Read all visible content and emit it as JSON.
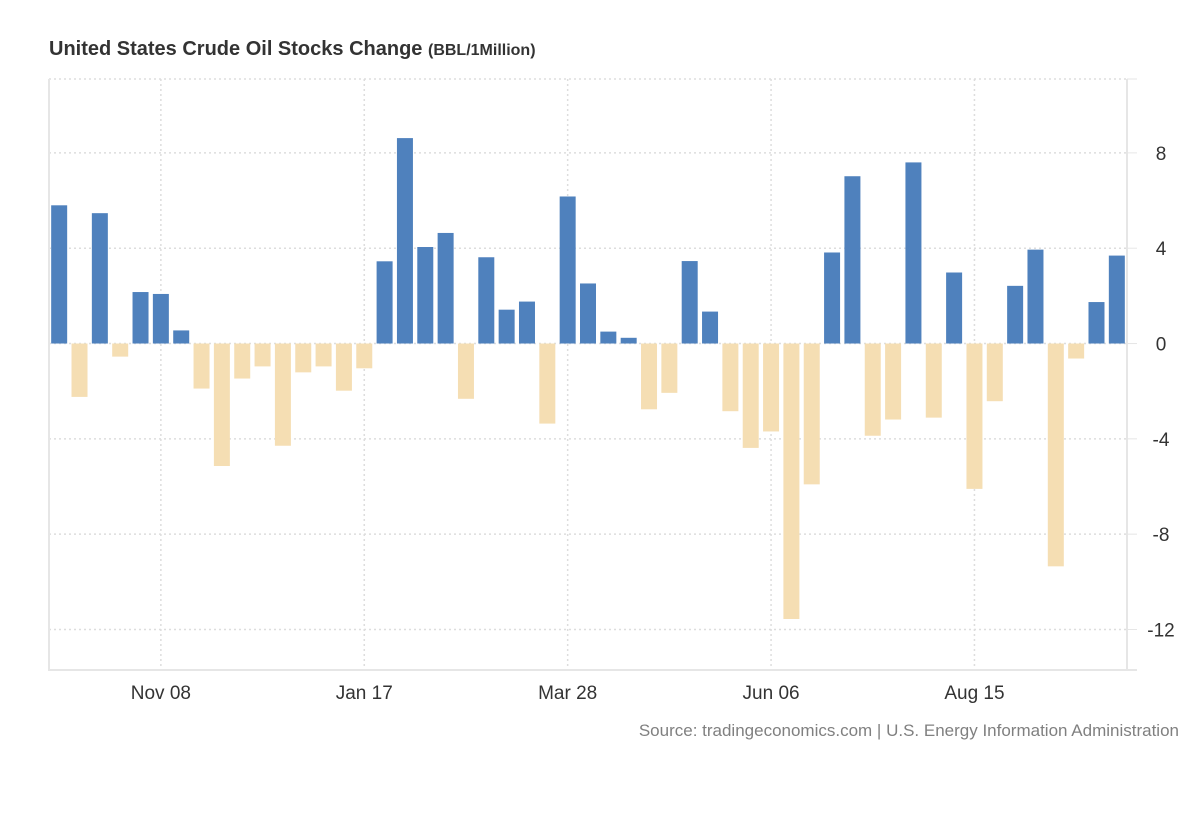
{
  "title": {
    "main": "United States Crude Oil Stocks Change",
    "unit": "(BBL/1Million)"
  },
  "source": "Source: tradingeconomics.com | U.S. Energy Information Administration",
  "colors": {
    "positive": "#4F81BD",
    "negative": "#F5DEB3",
    "grid": "#DDDDDD",
    "axis": "#E6E6E6",
    "text": "#333333"
  },
  "chart_data": {
    "type": "bar",
    "title": "United States Crude Oil Stocks Change (BBL/1Million)",
    "xlabel": "",
    "ylabel": "",
    "ylim": [
      -13.7,
      11.1
    ],
    "yticks": [
      8,
      4,
      0,
      -4,
      -8,
      -12
    ],
    "ytick_labels": [
      "8",
      "4",
      "0",
      "-4",
      "-8",
      "-12"
    ],
    "y_axis_side": "right",
    "grid": true,
    "legend": "none",
    "x_ticks": [
      {
        "index": 5,
        "label": "Nov 08"
      },
      {
        "index": 15,
        "label": "Jan 17"
      },
      {
        "index": 25,
        "label": "Mar 28"
      },
      {
        "index": 35,
        "label": "Jun 06"
      },
      {
        "index": 45,
        "label": "Aug 15"
      }
    ],
    "values": [
      5.8,
      -2.24,
      5.47,
      -0.55,
      2.16,
      2.08,
      0.55,
      -1.89,
      -5.14,
      -1.47,
      -0.96,
      -4.29,
      -1.21,
      -0.96,
      -1.98,
      -1.04,
      3.45,
      8.62,
      4.05,
      4.64,
      -2.32,
      3.62,
      1.42,
      1.76,
      -3.36,
      6.17,
      2.52,
      0.5,
      0.24,
      -2.76,
      -2.07,
      3.46,
      1.34,
      -2.84,
      -4.38,
      -3.69,
      -11.56,
      -5.91,
      3.82,
      7.02,
      -3.87,
      -3.19,
      7.6,
      -3.11,
      2.98,
      -6.1,
      -2.42,
      2.42,
      3.94,
      -9.35,
      -0.63,
      1.74,
      3.69
    ]
  }
}
